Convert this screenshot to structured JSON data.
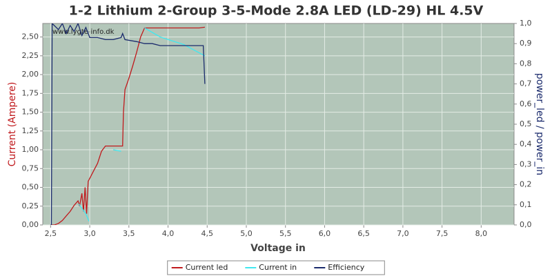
{
  "chart_data": {
    "type": "line",
    "title": "1-2 Lithium 2-Group 3-5-Mode 2.8A LED (LD-29) HL 4.5V",
    "watermark": "www.lygte-info.dk",
    "x_label": "Voltage in",
    "y_label": "Current (Ampere)",
    "y2_label": "power_led / power_in",
    "xlim": [
      2.4,
      8.42
    ],
    "ylim": [
      0,
      2.68
    ],
    "y2lim": [
      0,
      1
    ],
    "xticks": [
      {
        "value": 2.5,
        "label": "2,5"
      },
      {
        "value": 3.0,
        "label": "3,0"
      },
      {
        "value": 3.5,
        "label": "3,5"
      },
      {
        "value": 4.0,
        "label": "4,0"
      },
      {
        "value": 4.5,
        "label": "4,5"
      },
      {
        "value": 5.0,
        "label": "5,0"
      },
      {
        "value": 5.5,
        "label": "5,5"
      },
      {
        "value": 6.0,
        "label": "6,0"
      },
      {
        "value": 6.5,
        "label": "6,5"
      },
      {
        "value": 7.0,
        "label": "7,0"
      },
      {
        "value": 7.5,
        "label": "7,5"
      },
      {
        "value": 8.0,
        "label": "8,0"
      }
    ],
    "yticks": [
      {
        "value": 0,
        "label": "0,00"
      },
      {
        "value": 0.25,
        "label": "0,25"
      },
      {
        "value": 0.5,
        "label": "0,50"
      },
      {
        "value": 0.75,
        "label": "0,75"
      },
      {
        "value": 1.0,
        "label": "1,00"
      },
      {
        "value": 1.25,
        "label": "1,25"
      },
      {
        "value": 1.5,
        "label": "1,50"
      },
      {
        "value": 1.75,
        "label": "1,75"
      },
      {
        "value": 2.0,
        "label": "2,00"
      },
      {
        "value": 2.25,
        "label": "2,25"
      },
      {
        "value": 2.5,
        "label": "2,50"
      }
    ],
    "y2ticks": [
      {
        "value": 0,
        "label": "0,0"
      },
      {
        "value": 0.1,
        "label": "0,1"
      },
      {
        "value": 0.2,
        "label": "0,2"
      },
      {
        "value": 0.3,
        "label": "0,3"
      },
      {
        "value": 0.4,
        "label": "0,4"
      },
      {
        "value": 0.5,
        "label": "0,5"
      },
      {
        "value": 0.6,
        "label": "0,6"
      },
      {
        "value": 0.7,
        "label": "0,7"
      },
      {
        "value": 0.8,
        "label": "0,8"
      },
      {
        "value": 0.9,
        "label": "0,9"
      },
      {
        "value": 1.0,
        "label": "1,0"
      }
    ],
    "grid": true,
    "series": [
      {
        "name": "Current led",
        "color": "#c0191c",
        "x": [
          2.5,
          2.55,
          2.6,
          2.65,
          2.7,
          2.75,
          2.8,
          2.85,
          2.87,
          2.9,
          2.92,
          2.94,
          2.96,
          2.98,
          3.0,
          3.05,
          3.1,
          3.15,
          3.2,
          3.3,
          3.42,
          3.43,
          3.45,
          3.5,
          3.55,
          3.6,
          3.65,
          3.7,
          3.8,
          4.0,
          4.2,
          4.4,
          4.47
        ],
        "values": [
          0,
          0,
          0.02,
          0.06,
          0.12,
          0.18,
          0.26,
          0.32,
          0.25,
          0.42,
          0.18,
          0.5,
          0.15,
          0.58,
          0.62,
          0.72,
          0.82,
          0.98,
          1.05,
          1.05,
          1.05,
          1.5,
          1.8,
          1.95,
          2.12,
          2.3,
          2.5,
          2.62,
          2.62,
          2.62,
          2.62,
          2.62,
          2.63
        ]
      },
      {
        "name": "Current in",
        "color": "#40e8f0",
        "x": [
          2.86,
          2.9,
          2.95,
          2.99,
          3.1,
          3.3,
          3.4,
          3.6,
          3.7,
          3.9,
          4.2,
          4.47
        ],
        "values": [
          0.28,
          0.22,
          0.15,
          0.05,
          null,
          1.0,
          0.98,
          null,
          2.62,
          2.5,
          2.4,
          2.25
        ]
      },
      {
        "name": "Efficiency",
        "color": "#1a2a6c",
        "axis": "y2",
        "x": [
          2.5,
          2.51,
          2.52,
          2.6,
          2.65,
          2.7,
          2.75,
          2.8,
          2.85,
          2.9,
          2.95,
          3.0,
          3.1,
          3.2,
          3.3,
          3.4,
          3.42,
          3.45,
          3.6,
          3.7,
          3.8,
          3.9,
          4.0,
          4.2,
          4.45,
          4.47
        ],
        "values": [
          0,
          0,
          1.0,
          0.97,
          1.0,
          0.95,
          0.99,
          0.96,
          1.0,
          0.94,
          0.98,
          0.93,
          0.93,
          0.92,
          0.92,
          0.93,
          0.95,
          0.92,
          0.91,
          0.9,
          0.9,
          0.89,
          0.89,
          0.89,
          0.89,
          0.7
        ]
      }
    ]
  }
}
